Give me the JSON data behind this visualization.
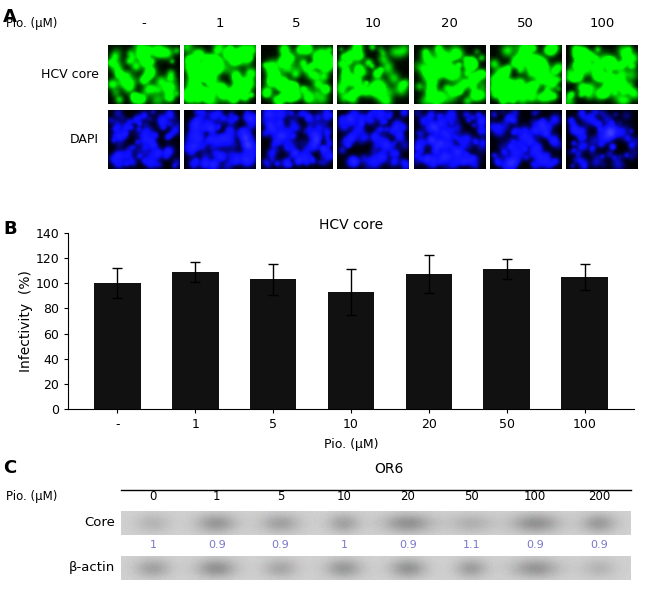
{
  "panel_A": {
    "label": "A",
    "pio_label": "Pio. (μM)",
    "concentrations": [
      "-",
      "1",
      "5",
      "10",
      "20",
      "50",
      "100"
    ],
    "row_labels": [
      "HCV core",
      "DAPI"
    ],
    "n_cols": 7
  },
  "panel_B": {
    "label": "B",
    "title": "HCV core",
    "xlabel": "Pio. (μM)",
    "ylabel": "Infectivity  (%)",
    "categories": [
      "-",
      "1",
      "5",
      "10",
      "20",
      "50",
      "100"
    ],
    "values": [
      100,
      109,
      103,
      93,
      107,
      111,
      105
    ],
    "errors": [
      12,
      8,
      12,
      18,
      15,
      8,
      10
    ],
    "bar_color": "#111111",
    "ylim": [
      0,
      140
    ],
    "yticks": [
      0,
      20,
      40,
      60,
      80,
      100,
      120,
      140
    ]
  },
  "panel_C": {
    "label": "C",
    "or6_title": "OR6",
    "pio_label": "Pio. (μM)",
    "concentrations": [
      "0",
      "1",
      "5",
      "10",
      "20",
      "50",
      "100",
      "200"
    ],
    "row1_label": "Core",
    "row2_label": "β-actin",
    "quantification": [
      "1",
      "0.9",
      "0.9",
      "1",
      "0.9",
      "1.1",
      "0.9",
      "0.9"
    ],
    "quant_color": "#7777cc"
  },
  "background_color": "#ffffff",
  "label_fontsize": 13,
  "tick_fontsize": 9,
  "axis_label_fontsize": 10
}
